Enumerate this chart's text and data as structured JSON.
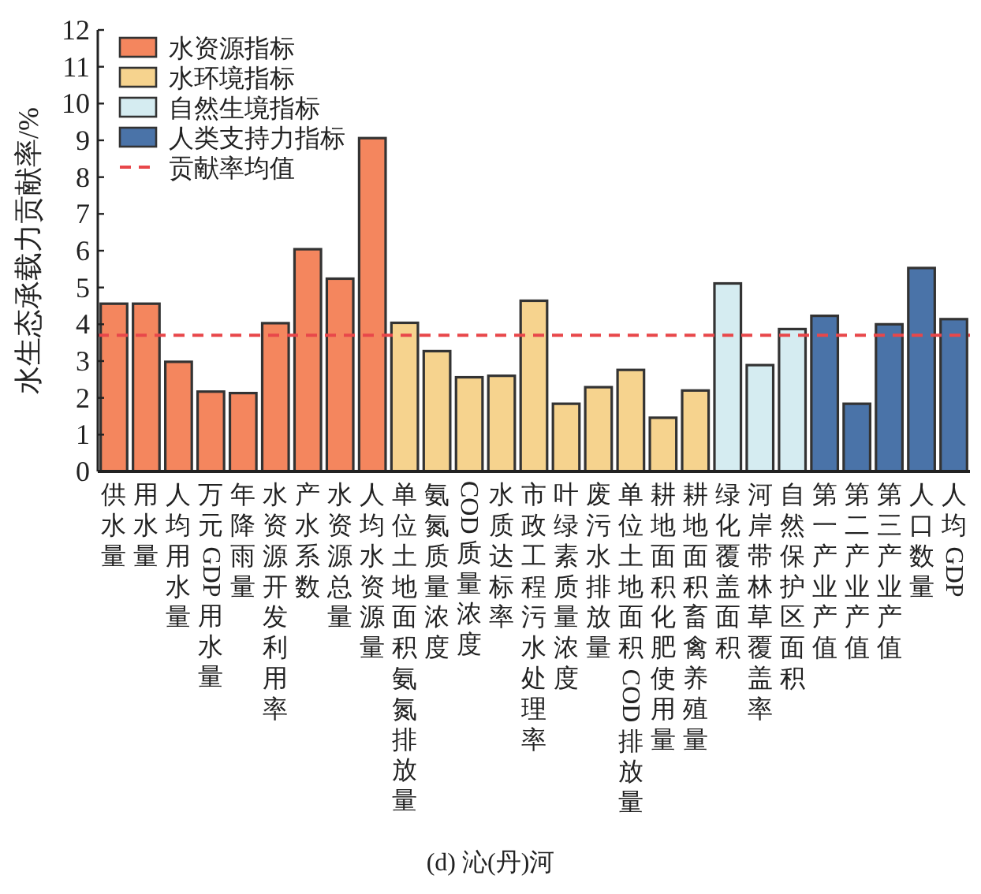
{
  "chart_data": {
    "type": "bar",
    "ylabel": "水生态承载力贡献率/%",
    "categories": [
      "供水量",
      "用水量",
      "人均用水量",
      "万元 GDP 用水量",
      "年降雨量",
      "水资源开发利用率",
      "产水系数",
      "水资源总量",
      "人均水资源量",
      "单位土地面积氨氮排放量",
      "氨氮质量浓度",
      "COD 质量浓度",
      "水质达标率",
      "市政工程污水处理率",
      "叶绿素质量浓度",
      "废污水排放量",
      "单位土地面积 COD 排放量",
      "耕地面积化肥使用量",
      "耕地面积畜禽养殖量",
      "绿化覆盖面积",
      "河岸带林草覆盖率",
      "自然保护区面积",
      "第一产业产值",
      "第二产业产值",
      "第三产业产值",
      "人口数量",
      "人均 GDP"
    ],
    "series": [
      {
        "name": "水资源指标",
        "color": "#f4865e",
        "values": [
          4.56,
          4.56,
          2.98,
          2.17,
          2.13,
          4.03,
          6.04,
          5.24,
          9.06,
          null,
          null,
          null,
          null,
          null,
          null,
          null,
          null,
          null,
          null,
          null,
          null,
          null,
          null,
          null,
          null,
          null,
          null
        ]
      },
      {
        "name": "水环境指标",
        "color": "#f6d38e",
        "values": [
          null,
          null,
          null,
          null,
          null,
          null,
          null,
          null,
          null,
          4.04,
          3.27,
          2.56,
          2.6,
          4.64,
          1.84,
          2.29,
          2.76,
          1.46,
          2.2,
          null,
          null,
          null,
          null,
          null,
          null,
          null,
          null
        ]
      },
      {
        "name": "自然生境指标",
        "color": "#d5ecf1",
        "values": [
          null,
          null,
          null,
          null,
          null,
          null,
          null,
          null,
          null,
          null,
          null,
          null,
          null,
          null,
          null,
          null,
          null,
          null,
          null,
          5.11,
          2.89,
          3.87,
          null,
          null,
          null,
          null,
          null
        ]
      },
      {
        "name": "人类支持力指标",
        "color": "#4a73a8",
        "values": [
          null,
          null,
          null,
          null,
          null,
          null,
          null,
          null,
          null,
          null,
          null,
          null,
          null,
          null,
          null,
          null,
          null,
          null,
          null,
          null,
          null,
          null,
          4.23,
          1.84,
          4.0,
          5.53,
          4.14
        ]
      }
    ],
    "ylim": [
      0,
      12
    ],
    "yticks": [
      0,
      1,
      2,
      3,
      4,
      5,
      6,
      7,
      8,
      9,
      10,
      11,
      12
    ],
    "ref_lines": [
      {
        "axis": "y",
        "value": 3.7,
        "label": "贡献率均值",
        "color": "#e8474a",
        "line_style": "dashed"
      }
    ],
    "legend": "top left",
    "grid": false,
    "annotations": [
      "(d) 沁(丹)河"
    ]
  }
}
